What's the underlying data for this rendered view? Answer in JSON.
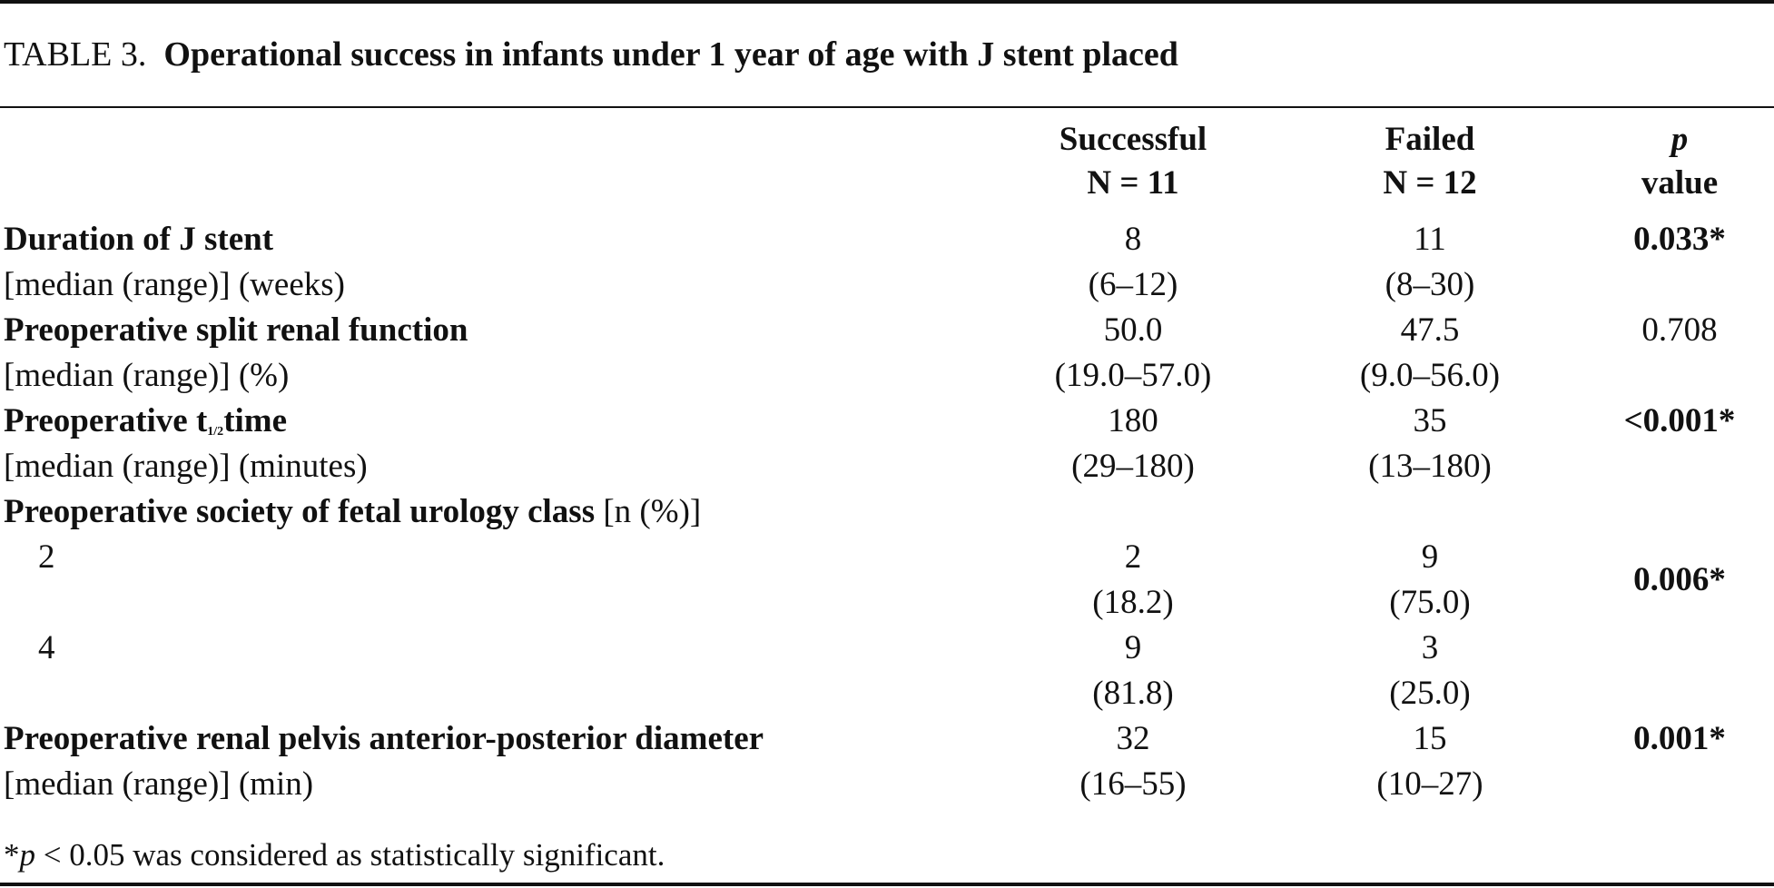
{
  "caption": {
    "label": "TABLE 3.",
    "title": "Operational success in infants under 1 year of age with J stent placed"
  },
  "header": {
    "successful": "Successful",
    "successful_n": "N = 11",
    "failed": "Failed",
    "failed_n": "N = 12",
    "p_symbol": "p",
    "p_value": "value"
  },
  "rows": {
    "duration": {
      "label": "Duration of J stent",
      "sublabel": "[median (range)] (weeks)",
      "successful": "8",
      "successful_range": "(6–12)",
      "failed": "11",
      "failed_range": "(8–30)",
      "p": "0.033*"
    },
    "split": {
      "label": "Preoperative split renal function",
      "sublabel": "[median (range)] (%)",
      "successful": "50.0",
      "successful_range": "(19.0–57.0)",
      "failed": "47.5",
      "failed_range": "(9.0–56.0)",
      "p": "0.708"
    },
    "thalf": {
      "label_pre": "Preoperative t",
      "label_sub": "1/2",
      "label_post": "time",
      "sublabel": "[median (range)] (minutes)",
      "successful": "180",
      "successful_range": "(29–180)",
      "failed": "35",
      "failed_range": "(13–180)",
      "p": "<0.001*"
    },
    "sfu": {
      "label": "Preoperative society of fetal urology class",
      "label_suffix": " [n (%)]",
      "class2": {
        "label": "2",
        "successful": "2",
        "successful_pct": "(18.2)",
        "failed": "9",
        "failed_pct": "(75.0)"
      },
      "class4": {
        "label": "4",
        "successful": "9",
        "successful_pct": "(81.8)",
        "failed": "3",
        "failed_pct": "(25.0)"
      },
      "p": "0.006*"
    },
    "apd": {
      "label": "Preoperative renal pelvis anterior-posterior diameter",
      "sublabel": "[median (range)] (min)",
      "successful": "32",
      "successful_range": "(16–55)",
      "failed": "15",
      "failed_range": "(10–27)",
      "p": "0.001*"
    }
  },
  "footnote": {
    "star": "*",
    "p": "p",
    "text": " < 0.05 was considered as statistically significant."
  }
}
